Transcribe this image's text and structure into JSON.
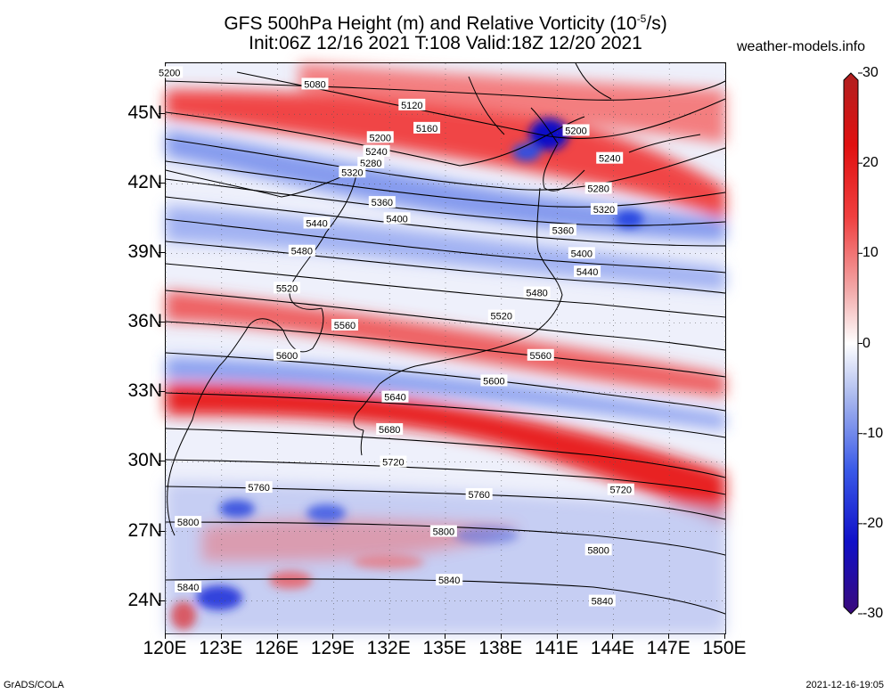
{
  "title": {
    "line1_prefix": "GFS 500hPa Height (m) and Relative Vorticity (10",
    "line1_exponent": "-5",
    "line1_suffix": "/s)",
    "line2": "Init:06Z 12/16 2021 T:108 Valid:18Z 12/20 2021"
  },
  "site": "weather-models.info",
  "footer": {
    "left": "GrADS/COLA",
    "right": "2021-12-16-19:05"
  },
  "map": {
    "lon_range": [
      120,
      150
    ],
    "lat_range": [
      22.6,
      47.2
    ],
    "lat_ticks": [
      45,
      42,
      39,
      36,
      33,
      30,
      27,
      24
    ],
    "lat_labels": [
      "45N",
      "42N",
      "39N",
      "36N",
      "33N",
      "30N",
      "27N",
      "24N"
    ],
    "lon_ticks": [
      120,
      123,
      126,
      129,
      132,
      135,
      138,
      141,
      144,
      147,
      150
    ],
    "lon_labels": [
      "120E",
      "123E",
      "126E",
      "129E",
      "132E",
      "135E",
      "138E",
      "141E",
      "144E",
      "147E",
      "150E"
    ],
    "contour_labels": [
      {
        "text": "5200",
        "lon": 120.2,
        "lat": 46.8
      },
      {
        "text": "5080",
        "lon": 128.0,
        "lat": 46.3
      },
      {
        "text": "5120",
        "lon": 133.2,
        "lat": 45.4
      },
      {
        "text": "5160",
        "lon": 134.0,
        "lat": 44.4
      },
      {
        "text": "5200",
        "lon": 131.5,
        "lat": 44.0
      },
      {
        "text": "5240",
        "lon": 131.3,
        "lat": 43.4
      },
      {
        "text": "5280",
        "lon": 131.0,
        "lat": 42.9
      },
      {
        "text": "5320",
        "lon": 130.0,
        "lat": 42.5
      },
      {
        "text": "5200",
        "lon": 142.0,
        "lat": 44.3
      },
      {
        "text": "5240",
        "lon": 143.8,
        "lat": 43.1
      },
      {
        "text": "5280",
        "lon": 143.2,
        "lat": 41.8
      },
      {
        "text": "5320",
        "lon": 143.5,
        "lat": 40.9
      },
      {
        "text": "5360",
        "lon": 131.6,
        "lat": 41.2
      },
      {
        "text": "5400",
        "lon": 132.4,
        "lat": 40.5
      },
      {
        "text": "5440",
        "lon": 128.1,
        "lat": 40.3
      },
      {
        "text": "5480",
        "lon": 127.3,
        "lat": 39.1
      },
      {
        "text": "5360",
        "lon": 141.3,
        "lat": 40.0
      },
      {
        "text": "5400",
        "lon": 142.3,
        "lat": 39.0
      },
      {
        "text": "5440",
        "lon": 142.6,
        "lat": 38.2
      },
      {
        "text": "5520",
        "lon": 126.5,
        "lat": 37.5
      },
      {
        "text": "5480",
        "lon": 139.9,
        "lat": 37.3
      },
      {
        "text": "5520",
        "lon": 138.0,
        "lat": 36.3
      },
      {
        "text": "5560",
        "lon": 129.6,
        "lat": 35.9
      },
      {
        "text": "5600",
        "lon": 126.5,
        "lat": 34.6
      },
      {
        "text": "5560",
        "lon": 140.1,
        "lat": 34.6
      },
      {
        "text": "5600",
        "lon": 137.6,
        "lat": 33.5
      },
      {
        "text": "5640",
        "lon": 132.3,
        "lat": 32.8
      },
      {
        "text": "5680",
        "lon": 132.0,
        "lat": 31.4
      },
      {
        "text": "5720",
        "lon": 132.2,
        "lat": 30.0
      },
      {
        "text": "5720",
        "lon": 144.4,
        "lat": 28.8
      },
      {
        "text": "5760",
        "lon": 125.0,
        "lat": 28.9
      },
      {
        "text": "5760",
        "lon": 136.8,
        "lat": 28.6
      },
      {
        "text": "5800",
        "lon": 121.2,
        "lat": 27.4
      },
      {
        "text": "5800",
        "lon": 134.9,
        "lat": 27.0
      },
      {
        "text": "5800",
        "lon": 143.2,
        "lat": 26.2
      },
      {
        "text": "5840",
        "lon": 121.2,
        "lat": 24.6
      },
      {
        "text": "5840",
        "lon": 135.2,
        "lat": 24.9
      },
      {
        "text": "5840",
        "lon": 143.4,
        "lat": 24.0
      }
    ]
  },
  "colorbar": {
    "min": -30,
    "max": 30,
    "labels": [
      "30",
      "20",
      "10",
      "0",
      "-10",
      "-20",
      "-30"
    ],
    "stops": [
      {
        "value": -30,
        "color": "#3a0a7a"
      },
      {
        "value": -22,
        "color": "#1010c8"
      },
      {
        "value": -14,
        "color": "#3a5ae8"
      },
      {
        "value": -6,
        "color": "#a9b8ee"
      },
      {
        "value": 0,
        "color": "#ffffff"
      },
      {
        "value": 6,
        "color": "#f2a8a8"
      },
      {
        "value": 14,
        "color": "#f04040"
      },
      {
        "value": 22,
        "color": "#e01010"
      },
      {
        "value": 30,
        "color": "#b02020"
      }
    ]
  }
}
